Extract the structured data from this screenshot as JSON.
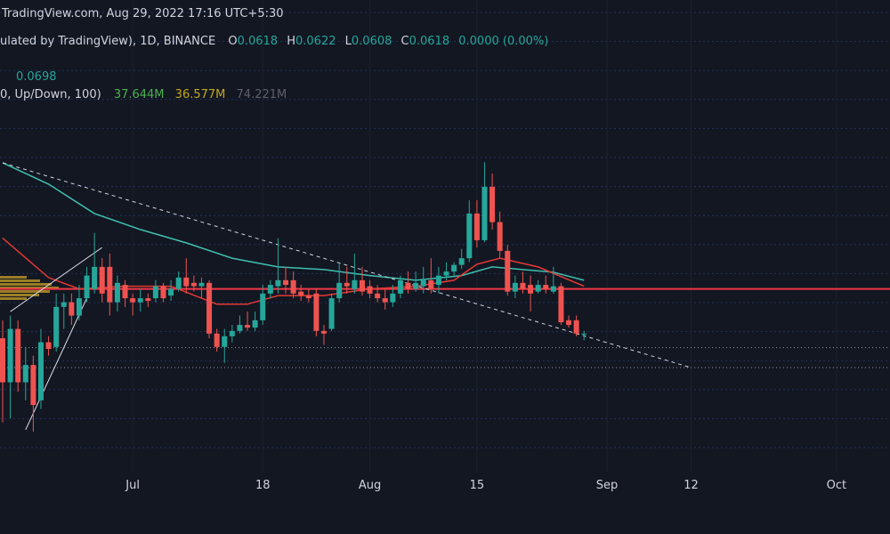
{
  "header": {
    "source": "TradingView.com, Aug 29, 2022 17:16 UTC+5:30",
    "symbol": "ulated by TradingView), 1D, BINANCE",
    "ohlc": [
      {
        "label": "O",
        "value": "0.0618"
      },
      {
        "label": "H",
        "value": "0.0622"
      },
      {
        "label": "L",
        "value": "0.0608"
      },
      {
        "label": "C",
        "value": "0.0618"
      }
    ],
    "change": "0.0000 (0.00%)",
    "indicator_value": "0.0698",
    "volume_label": "0, Up/Down, 100)",
    "volume_values": [
      {
        "text": "37.644M",
        "color": "#4caf50"
      },
      {
        "text": "36.577M",
        "color": "#c2a91a"
      },
      {
        "text": "74.221M",
        "color": "#5d606b"
      }
    ]
  },
  "chart_data": {
    "type": "candlestick",
    "x": [
      "Jun 14",
      "Jun 15",
      "Jun 16",
      "Jun 17",
      "Jun 18",
      "Jun 19",
      "Jun 20",
      "Jun 21",
      "Jun 22",
      "Jun 23",
      "Jun 24",
      "Jun 25",
      "Jun 26",
      "Jun 27",
      "Jun 28",
      "Jun 29",
      "Jun 30",
      "Jul 1",
      "Jul 2",
      "Jul 3",
      "Jul 4",
      "Jul 5",
      "Jul 6",
      "Jul 7",
      "Jul 8",
      "Jul 9",
      "Jul 10",
      "Jul 11",
      "Jul 12",
      "Jul 13",
      "Jul 14",
      "Jul 15",
      "Jul 16",
      "Jul 17",
      "Jul 18",
      "Jul 19",
      "Jul 20",
      "Jul 21",
      "Jul 22",
      "Jul 23",
      "Jul 24",
      "Jul 25",
      "Jul 26",
      "Jul 27",
      "Jul 28",
      "Jul 29",
      "Jul 30",
      "Jul 31",
      "Aug 1",
      "Aug 2",
      "Aug 3",
      "Aug 4",
      "Aug 5",
      "Aug 6",
      "Aug 7",
      "Aug 8",
      "Aug 9",
      "Aug 10",
      "Aug 11",
      "Aug 12",
      "Aug 13",
      "Aug 14",
      "Aug 15",
      "Aug 16",
      "Aug 17",
      "Aug 18",
      "Aug 19",
      "Aug 20",
      "Aug 21",
      "Aug 22",
      "Aug 23",
      "Aug 24",
      "Aug 25",
      "Aug 26",
      "Aug 27",
      "Aug 28",
      "Aug 29"
    ],
    "open": [
      0.0611,
      0.0545,
      0.0625,
      0.0545,
      0.0571,
      0.0518,
      0.0605,
      0.0598,
      0.0658,
      0.0665,
      0.0645,
      0.0671,
      0.0685,
      0.0718,
      0.0718,
      0.0665,
      0.0691,
      0.0671,
      0.0665,
      0.0671,
      0.0671,
      0.0689,
      0.0675,
      0.0685,
      0.0702,
      0.0694,
      0.0689,
      0.0694,
      0.0618,
      0.0598,
      0.0614,
      0.0622,
      0.0631,
      0.0627,
      0.0638,
      0.0678,
      0.0689,
      0.0698,
      0.0698,
      0.0681,
      0.0675,
      0.0678,
      0.0622,
      0.0625,
      0.0671,
      0.0694,
      0.0685,
      0.0698,
      0.0689,
      0.0678,
      0.0671,
      0.0665,
      0.0678,
      0.0694,
      0.0685,
      0.0689,
      0.0698,
      0.0691,
      0.0705,
      0.0711,
      0.0721,
      0.0731,
      0.0798,
      0.0758,
      0.0838,
      0.0785,
      0.0742,
      0.0681,
      0.0694,
      0.0691,
      0.0681,
      0.0691,
      0.0681,
      0.0689,
      0.0638,
      0.0638,
      0.0618
    ],
    "high": [
      0.0638,
      0.0645,
      0.0638,
      0.0598,
      0.0585,
      0.0625,
      0.0614,
      0.0678,
      0.0678,
      0.0678,
      0.0691,
      0.0718,
      0.0769,
      0.0731,
      0.0738,
      0.0705,
      0.0698,
      0.0678,
      0.0685,
      0.0678,
      0.0698,
      0.0694,
      0.0698,
      0.0711,
      0.0731,
      0.0705,
      0.0702,
      0.0698,
      0.0625,
      0.0625,
      0.0631,
      0.0645,
      0.0651,
      0.0651,
      0.0691,
      0.0698,
      0.0761,
      0.0718,
      0.0711,
      0.0691,
      0.0685,
      0.0685,
      0.0631,
      0.0678,
      0.0725,
      0.0718,
      0.0738,
      0.0718,
      0.0698,
      0.0691,
      0.0685,
      0.0691,
      0.0705,
      0.0711,
      0.0711,
      0.0718,
      0.0731,
      0.0718,
      0.0725,
      0.0725,
      0.0745,
      0.0818,
      0.0818,
      0.0875,
      0.0858,
      0.0801,
      0.0751,
      0.0705,
      0.0711,
      0.0705,
      0.0698,
      0.0705,
      0.0718,
      0.0694,
      0.0645,
      0.0645,
      0.0622
    ],
    "low": [
      0.0485,
      0.0491,
      0.0531,
      0.0518,
      0.0471,
      0.0505,
      0.0585,
      0.0591,
      0.0625,
      0.0631,
      0.0638,
      0.0665,
      0.0678,
      0.0665,
      0.0645,
      0.0651,
      0.0658,
      0.0645,
      0.0651,
      0.0658,
      0.0665,
      0.0665,
      0.0667,
      0.0681,
      0.0678,
      0.0681,
      0.0671,
      0.0611,
      0.0591,
      0.0574,
      0.0605,
      0.0618,
      0.0622,
      0.0622,
      0.0631,
      0.0671,
      0.0678,
      0.0678,
      0.0671,
      0.0667,
      0.0665,
      0.0614,
      0.0601,
      0.0622,
      0.0665,
      0.0678,
      0.0678,
      0.0675,
      0.0671,
      0.0665,
      0.0654,
      0.0658,
      0.0671,
      0.0678,
      0.0681,
      0.0678,
      0.0678,
      0.0678,
      0.0698,
      0.0705,
      0.0715,
      0.0725,
      0.0747,
      0.0755,
      0.0774,
      0.0731,
      0.0675,
      0.0671,
      0.0678,
      0.0651,
      0.0678,
      0.0678,
      0.0678,
      0.0631,
      0.0627,
      0.0614,
      0.0608
    ],
    "close": [
      0.0545,
      0.0625,
      0.0545,
      0.0571,
      0.0511,
      0.0605,
      0.0595,
      0.0658,
      0.0665,
      0.0645,
      0.0671,
      0.0705,
      0.0718,
      0.0678,
      0.0665,
      0.0694,
      0.0671,
      0.0665,
      0.0671,
      0.0667,
      0.0689,
      0.0671,
      0.0685,
      0.0702,
      0.0689,
      0.0689,
      0.0694,
      0.0618,
      0.0598,
      0.0614,
      0.0622,
      0.0631,
      0.0627,
      0.0638,
      0.0678,
      0.0691,
      0.0698,
      0.0691,
      0.0678,
      0.0675,
      0.0671,
      0.0622,
      0.0618,
      0.0671,
      0.0694,
      0.0689,
      0.0698,
      0.0681,
      0.0678,
      0.0671,
      0.0665,
      0.0678,
      0.0698,
      0.0685,
      0.0694,
      0.0698,
      0.0685,
      0.0705,
      0.0711,
      0.0721,
      0.0731,
      0.0798,
      0.0758,
      0.0838,
      0.0785,
      0.0742,
      0.0681,
      0.0694,
      0.0685,
      0.0678,
      0.0691,
      0.0685,
      0.0689,
      0.0635,
      0.0631,
      0.0618,
      0.0618
    ],
    "up_color": "#26a69a",
    "down_color": "#ef5350",
    "xlim": [
      "Jun 14",
      "Oct 8"
    ],
    "xticks": [
      {
        "value": "Jul 1",
        "label": "Jul"
      },
      {
        "value": "Jul 18",
        "label": "18"
      },
      {
        "value": "Aug 1",
        "label": "Aug"
      },
      {
        "value": "Aug 15",
        "label": "15"
      },
      {
        "value": "Sep 1",
        "label": "Sep"
      },
      {
        "value": "Sep 12",
        "label": "12"
      },
      {
        "value": "Oct 1",
        "label": "Oct"
      }
    ],
    "ylim": [
      0.0411,
      0.1118
    ],
    "lines": [
      {
        "color": "#3fbfae",
        "x": [
          "Jun 14",
          "Jun 20",
          "Jun 26",
          "Jul 2",
          "Jul 8",
          "Jul 14",
          "Jul 20",
          "Jul 26",
          "Aug 1",
          "Aug 7",
          "Aug 13",
          "Aug 17",
          "Aug 21",
          "Aug 25",
          "Aug 29"
        ],
        "values": [
          0.0874,
          0.0842,
          0.0798,
          0.0774,
          0.0754,
          0.0731,
          0.0718,
          0.0714,
          0.0705,
          0.0698,
          0.0705,
          0.0718,
          0.0714,
          0.071,
          0.0698
        ]
      },
      {
        "color": "#e53935",
        "x": [
          "Jun 14",
          "Jun 20",
          "Jun 24",
          "Jun 30",
          "Jul 6",
          "Jul 12",
          "Jul 16",
          "Jul 20",
          "Jul 26",
          "Aug 1",
          "Aug 7",
          "Aug 12",
          "Aug 15",
          "Aug 18",
          "Aug 23",
          "Aug 29"
        ],
        "values": [
          0.0761,
          0.0702,
          0.0685,
          0.0689,
          0.0689,
          0.0662,
          0.0662,
          0.0675,
          0.0675,
          0.0685,
          0.0689,
          0.0698,
          0.0722,
          0.0731,
          0.0718,
          0.0689
        ]
      }
    ],
    "levels": [
      {
        "value": 0.0685,
        "color": "#f23645",
        "style": "solid"
      },
      {
        "value": 0.0597,
        "color": "#9598a1",
        "style": "dotted"
      },
      {
        "value": 0.0567,
        "color": "#9598a1",
        "style": "dotted"
      }
    ],
    "drawings": [
      {
        "x": [
          "Jun 14",
          "Sep 12"
        ],
        "values": [
          0.0874,
          0.0567
        ],
        "color": "#d1d4dc",
        "style": "dashed"
      },
      {
        "x": [
          "Jun 15",
          "Jun 27"
        ],
        "values": [
          0.0651,
          0.0747
        ],
        "color": "#e0e3eb",
        "style": "solid"
      },
      {
        "x": [
          "Jun 17",
          "Jun 25"
        ],
        "values": [
          0.0474,
          0.0671
        ],
        "color": "#e0e3eb",
        "style": "solid"
      }
    ],
    "grid": true
  }
}
